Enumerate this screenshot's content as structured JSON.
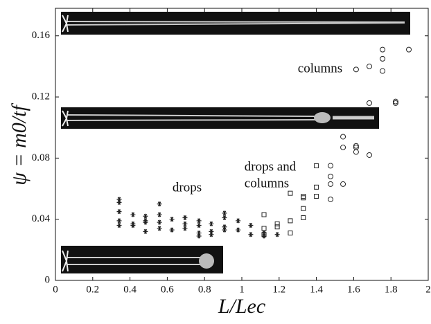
{
  "chart_data": {
    "type": "scatter",
    "x_label": "L/Lec",
    "y_label": "ψ = m0/tf",
    "annotations": [
      "columns",
      "drops and",
      "columns",
      "drops"
    ],
    "xlim": [
      0,
      2
    ],
    "ylim": [
      0,
      0.178
    ],
    "xticks": [
      0,
      0.2,
      0.4,
      0.6,
      0.8,
      1,
      1.2,
      1.4,
      1.6,
      1.8,
      2
    ],
    "yticks": [
      0,
      0.04,
      0.08,
      0.12,
      0.16
    ],
    "series": [
      {
        "marker": "asterisk",
        "color": "#222222",
        "x": [
          0.342,
          0.342,
          0.342,
          0.342,
          0.342,
          0.416,
          0.416,
          0.416,
          0.483,
          0.483,
          0.483,
          0.483,
          0.558,
          0.558,
          0.558,
          0.558,
          0.625,
          0.625,
          0.695,
          0.695,
          0.695,
          0.77,
          0.77,
          0.77,
          0.77,
          0.836,
          0.836,
          0.836,
          0.907,
          0.907,
          0.907,
          0.907,
          0.98,
          0.98,
          1.048,
          1.048,
          1.119,
          1.119,
          1.19
        ],
        "values": [
          0.053,
          0.051,
          0.045,
          0.039,
          0.036,
          0.043,
          0.037,
          0.036,
          0.042,
          0.039,
          0.038,
          0.032,
          0.05,
          0.043,
          0.038,
          0.034,
          0.04,
          0.033,
          0.041,
          0.037,
          0.034,
          0.039,
          0.036,
          0.031,
          0.029,
          0.037,
          0.032,
          0.03,
          0.044,
          0.041,
          0.035,
          0.033,
          0.039,
          0.033,
          0.036,
          0.03,
          0.031,
          0.029,
          0.03
        ]
      },
      {
        "marker": "square",
        "color": "#222222",
        "x": [
          1.119,
          1.119,
          1.119,
          1.19,
          1.19,
          1.26,
          1.26,
          1.26,
          1.33,
          1.33,
          1.33,
          1.33,
          1.4,
          1.4,
          1.4
        ],
        "values": [
          0.043,
          0.034,
          0.03,
          0.037,
          0.035,
          0.057,
          0.039,
          0.031,
          0.055,
          0.054,
          0.047,
          0.041,
          0.075,
          0.061,
          0.055
        ]
      },
      {
        "marker": "circle",
        "color": "#222222",
        "x": [
          1.476,
          1.476,
          1.476,
          1.476,
          1.543,
          1.543,
          1.543,
          1.613,
          1.613,
          1.613,
          1.613,
          1.684,
          1.684,
          1.684,
          1.755,
          1.755,
          1.755,
          1.825,
          1.825,
          1.896
        ],
        "values": [
          0.075,
          0.068,
          0.063,
          0.053,
          0.094,
          0.087,
          0.063,
          0.138,
          0.088,
          0.087,
          0.084,
          0.14,
          0.116,
          0.082,
          0.151,
          0.145,
          0.137,
          0.117,
          0.116,
          0.151
        ]
      }
    ]
  }
}
